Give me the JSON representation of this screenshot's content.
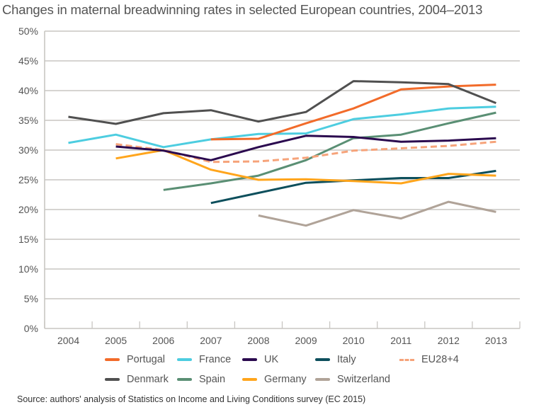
{
  "chart_data": {
    "type": "line",
    "title": "Changes in maternal breadwinning rates in selected European countries, 2004–2013",
    "xlabel": "",
    "ylabel": "",
    "categories": [
      "2004",
      "2005",
      "2006",
      "2007",
      "2008",
      "2009",
      "2010",
      "2011",
      "2012",
      "2013"
    ],
    "ylim": [
      0,
      50
    ],
    "yticks": [
      "0%",
      "5%",
      "10%",
      "15%",
      "20%",
      "25%",
      "30%",
      "35%",
      "40%",
      "45%",
      "50%"
    ],
    "grid": true,
    "legend_position": "bottom",
    "series": [
      {
        "name": "Portugal",
        "color": "#f26b2a",
        "dashed": false,
        "values": [
          null,
          null,
          null,
          31.8,
          31.9,
          34.5,
          37.0,
          40.2,
          40.7,
          41.0
        ]
      },
      {
        "name": "France",
        "color": "#4dcde0",
        "dashed": false,
        "values": [
          31.2,
          32.6,
          30.5,
          31.8,
          32.7,
          32.8,
          35.2,
          36.0,
          37.0,
          37.3
        ]
      },
      {
        "name": "UK",
        "color": "#2b0a4f",
        "dashed": false,
        "values": [
          null,
          30.6,
          29.9,
          28.3,
          30.5,
          32.4,
          32.2,
          31.4,
          31.6,
          32.0
        ]
      },
      {
        "name": "Italy",
        "color": "#0d4f5c",
        "dashed": false,
        "values": [
          null,
          null,
          null,
          21.1,
          22.8,
          24.5,
          24.9,
          25.3,
          25.3,
          26.5
        ]
      },
      {
        "name": "EU28+4",
        "color": "#f6a37a",
        "dashed": true,
        "values": [
          null,
          31.0,
          30.0,
          28.0,
          28.1,
          28.7,
          29.9,
          30.3,
          30.7,
          31.4
        ]
      },
      {
        "name": "Denmark",
        "color": "#505050",
        "dashed": false,
        "values": [
          35.6,
          34.4,
          36.2,
          36.7,
          34.8,
          36.4,
          41.6,
          41.4,
          41.1,
          37.9
        ]
      },
      {
        "name": "Spain",
        "color": "#5a8f74",
        "dashed": false,
        "values": [
          null,
          null,
          23.3,
          24.4,
          25.7,
          28.3,
          32.0,
          32.6,
          34.5,
          36.3
        ]
      },
      {
        "name": "Germany",
        "color": "#ffa51c",
        "dashed": false,
        "values": [
          null,
          28.6,
          30.0,
          26.7,
          25.0,
          25.1,
          24.8,
          24.4,
          26.0,
          25.7
        ]
      },
      {
        "name": "Switzerland",
        "color": "#b0a398",
        "dashed": false,
        "values": [
          null,
          null,
          null,
          null,
          19.0,
          17.3,
          19.9,
          18.5,
          21.3,
          19.6
        ]
      }
    ],
    "source": "Source: authors' analysis of Statistics on Income and Living Conditions survey (EC 2015)"
  },
  "colors": {
    "gridline": "#c8c6c2",
    "axis_text": "#555555"
  }
}
